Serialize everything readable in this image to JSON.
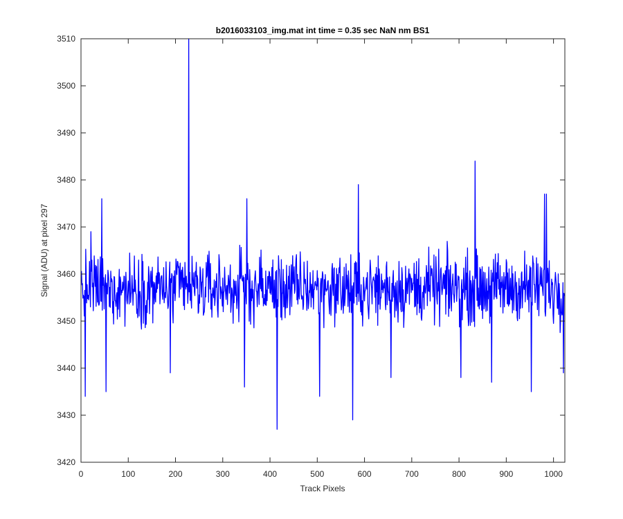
{
  "chart_data": {
    "type": "line",
    "title": "b2016033103_img.mat int time = 0.35 sec  NaN nm BS1",
    "xlabel": "Track Pixels",
    "ylabel": "Signal (ADU) at pixel 297",
    "xlim": [
      0,
      1024
    ],
    "ylim": [
      3420,
      3510
    ],
    "xticks": [
      0,
      100,
      200,
      300,
      400,
      500,
      600,
      700,
      800,
      900,
      1000
    ],
    "yticks": [
      3420,
      3430,
      3440,
      3450,
      3460,
      3470,
      3480,
      3490,
      3500,
      3510
    ],
    "grid": false,
    "series": [
      {
        "color": "#0000ff",
        "n_points": 1024,
        "baseline": 3457,
        "noise_amplitude": 9,
        "spikes": [
          {
            "x": 227,
            "y": 3510
          },
          {
            "x": 414,
            "y": 3427
          },
          {
            "x": 574,
            "y": 3429
          },
          {
            "x": 833,
            "y": 3484
          },
          {
            "x": 586,
            "y": 3479
          },
          {
            "x": 8,
            "y": 3434
          },
          {
            "x": 52,
            "y": 3435
          },
          {
            "x": 43,
            "y": 3476
          },
          {
            "x": 345,
            "y": 3436
          },
          {
            "x": 350,
            "y": 3476
          },
          {
            "x": 504,
            "y": 3434
          },
          {
            "x": 952,
            "y": 3435
          },
          {
            "x": 980,
            "y": 3477
          },
          {
            "x": 984,
            "y": 3477
          },
          {
            "x": 1020,
            "y": 3439
          },
          {
            "x": 188,
            "y": 3439
          },
          {
            "x": 655,
            "y": 3438
          },
          {
            "x": 803,
            "y": 3438
          },
          {
            "x": 868,
            "y": 3437
          },
          {
            "x": 20,
            "y": 3469
          }
        ]
      }
    ]
  }
}
